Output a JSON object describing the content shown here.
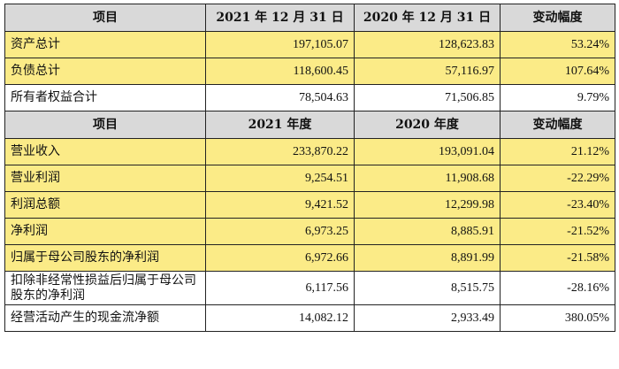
{
  "highlight_color": "#fbeb87",
  "header_color": "#d9d9d9",
  "balance": {
    "headers": [
      "项目",
      "2021 年 12 月 31 日",
      "2020 年 12 月 31 日",
      "变动幅度"
    ],
    "rows": [
      {
        "name": "资产总计",
        "v2021": "197,105.07",
        "v2020": "128,623.83",
        "change": "53.24%",
        "highlighted": true
      },
      {
        "name": "负债总计",
        "v2021": "118,600.45",
        "v2020": "57,116.97",
        "change": "107.64%",
        "highlighted": true
      },
      {
        "name": "所有者权益合计",
        "v2021": "78,504.63",
        "v2020": "71,506.85",
        "change": "9.79%",
        "highlighted": false
      }
    ]
  },
  "income": {
    "headers": [
      "项目",
      "2021 年度",
      "2020 年度",
      "变动幅度"
    ],
    "rows": [
      {
        "name": "营业收入",
        "v2021": "233,870.22",
        "v2020": "193,091.04",
        "change": "21.12%",
        "highlighted": true
      },
      {
        "name": "营业利润",
        "v2021": "9,254.51",
        "v2020": "11,908.68",
        "change": "-22.29%",
        "highlighted": true
      },
      {
        "name": "利润总额",
        "v2021": "9,421.52",
        "v2020": "12,299.98",
        "change": "-23.40%",
        "highlighted": true
      },
      {
        "name": "净利润",
        "v2021": "6,973.25",
        "v2020": "8,885.91",
        "change": "-21.52%",
        "highlighted": true
      },
      {
        "name": "归属于母公司股东的净利润",
        "v2021": "6,972.66",
        "v2020": "8,891.99",
        "change": "-21.58%",
        "highlighted": true
      },
      {
        "name": "扣除非经常性损益后归属于母公司股东的净利润",
        "v2021": "6,117.56",
        "v2020": "8,515.75",
        "change": "-28.16%",
        "highlighted": false
      },
      {
        "name": "经营活动产生的现金流净额",
        "v2021": "14,082.12",
        "v2020": "2,933.49",
        "change": "380.05%",
        "highlighted": false
      }
    ]
  }
}
